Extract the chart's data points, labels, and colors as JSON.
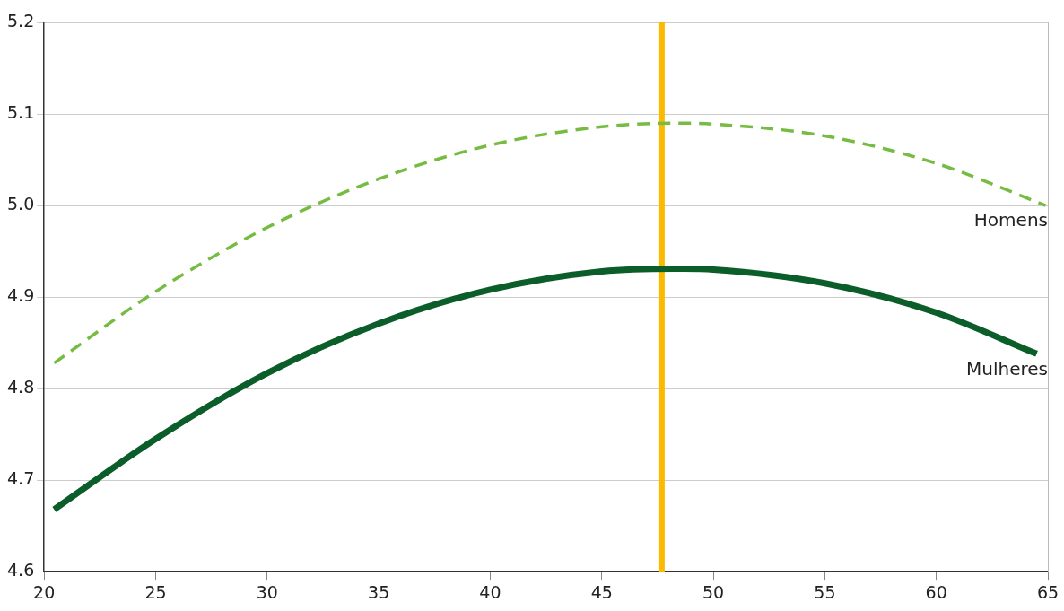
{
  "chart_data": {
    "type": "line",
    "series": [
      {
        "name": "Homens",
        "color": "#76bc43",
        "line_style": "dashed",
        "x": [
          20.45,
          25,
          30,
          35,
          40,
          45,
          48.5,
          50,
          55,
          60,
          64.9
        ],
        "values": [
          4.828,
          4.906,
          4.976,
          5.029,
          5.066,
          5.086,
          5.09,
          5.089,
          5.076,
          5.046,
          5.0
        ]
      },
      {
        "name": "Mulheres",
        "color": "#0b5d2a",
        "line_style": "solid",
        "x": [
          20.45,
          25,
          30,
          35,
          40,
          45,
          48.2,
          50,
          55,
          60,
          64.5
        ],
        "values": [
          4.668,
          4.745,
          4.817,
          4.871,
          4.908,
          4.928,
          4.931,
          4.93,
          4.915,
          4.883,
          4.838
        ]
      }
    ],
    "xlim": [
      20,
      65
    ],
    "xticks": [
      20,
      25,
      30,
      35,
      40,
      45,
      50,
      55,
      60,
      65
    ],
    "ylim": [
      4.6,
      5.2
    ],
    "yticks": [
      {
        "value": 4.6,
        "label": "4.6"
      },
      {
        "value": 4.7,
        "label": "4.7"
      },
      {
        "value": 4.8,
        "label": "4.8"
      },
      {
        "value": 4.9,
        "label": "4.9"
      },
      {
        "value": 5.0,
        "label": "5.0"
      },
      {
        "value": 5.1,
        "label": "5.1"
      },
      {
        "value": 5.2,
        "label": "5.2"
      }
    ],
    "grid": "y",
    "legend": false,
    "marker": "none",
    "ref_lines": [
      {
        "axis": "x",
        "value": 47.7,
        "color": "#fbb900",
        "line_style": "solid"
      }
    ]
  }
}
